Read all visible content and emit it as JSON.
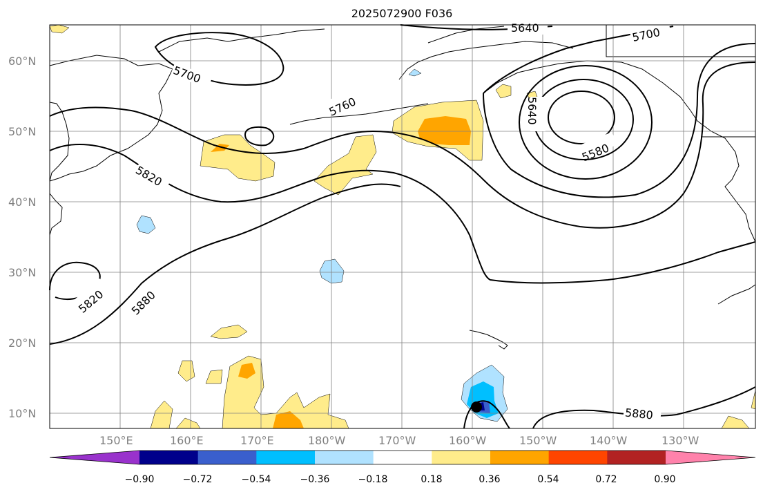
{
  "title": "2025072900 F036",
  "lat_labels": [
    "60°N",
    "50°N",
    "40°N",
    "30°N",
    "20°N",
    "10°N"
  ],
  "lon_labels": [
    "150°E",
    "160°E",
    "170°E",
    "180°W",
    "170°W",
    "160°W",
    "150°W",
    "140°W",
    "130°W"
  ],
  "contour_labels": [
    "5640",
    "5700",
    "5700",
    "5640",
    "5580",
    "5760",
    "5820",
    "5820",
    "5880",
    "5880"
  ],
  "colorbar": {
    "ticks": [
      "−0.90",
      "−0.72",
      "−0.54",
      "−0.36",
      "−0.18",
      "0.18",
      "0.36",
      "0.54",
      "0.72",
      "0.90"
    ],
    "colors": [
      "#9932CC",
      "#00008B",
      "#3A5FCD",
      "#00BFFF",
      "#B0E2FF",
      "#FFFFFF",
      "#FFEC8B",
      "#FFA500",
      "#FF4500",
      "#B22222",
      "#FF82AB"
    ]
  },
  "colors": {
    "fill_light_yellow": "#FFEC8B",
    "fill_orange": "#FFA500",
    "fill_light_blue": "#B0E2FF",
    "fill_blue": "#00BFFF",
    "grid": "#808080"
  }
}
